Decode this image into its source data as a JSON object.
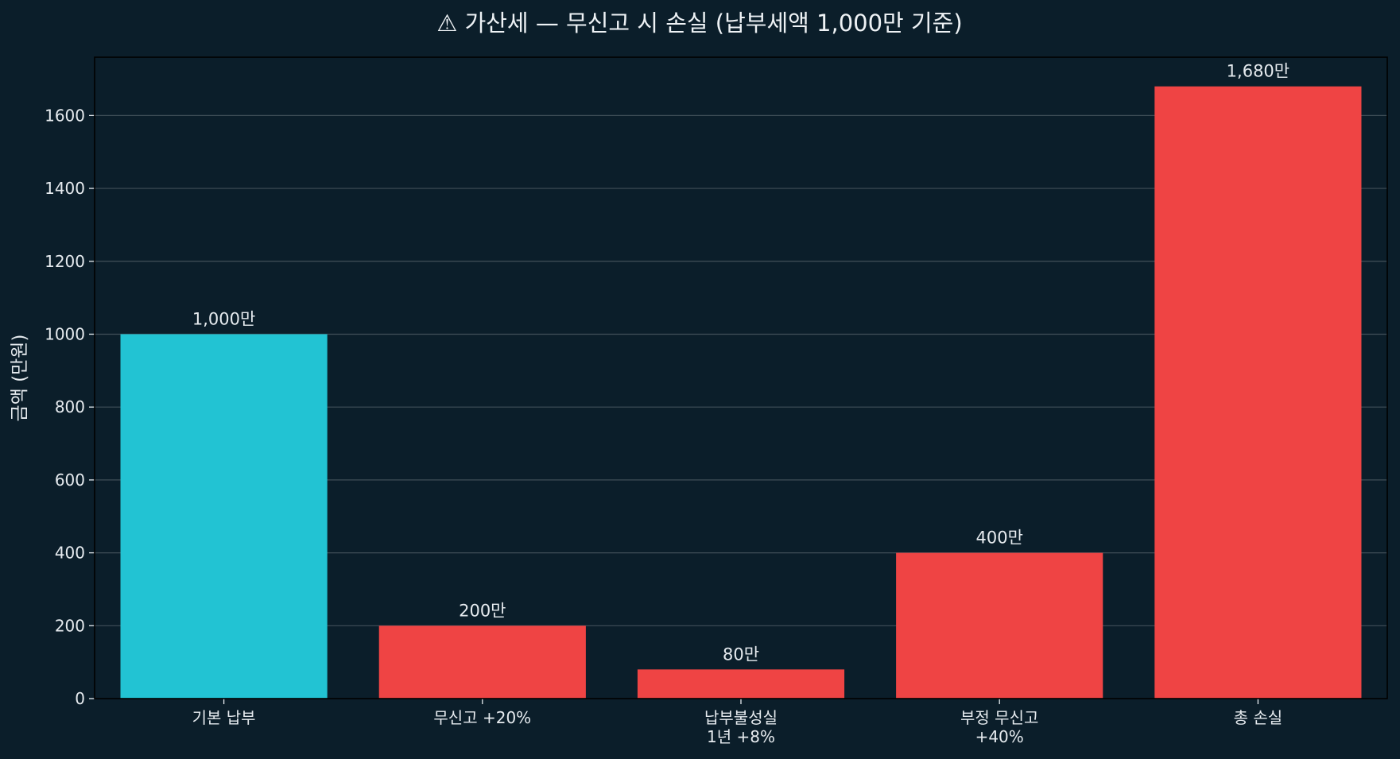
{
  "chart_data": {
    "type": "bar",
    "title": "⚠ 가산세 — 무신고 시 손실 (납부세액 1,000만 기준)",
    "xlabel": "",
    "ylabel": "금액 (만원)",
    "categories": [
      "기본 납부",
      "무신고 +20%",
      "납부불성실\n1년 +8%",
      "부정 무신고\n+40%",
      "총 손실"
    ],
    "values": [
      1000,
      200,
      80,
      400,
      1680
    ],
    "data_labels": [
      "1,000만",
      "200만",
      "80만",
      "400만",
      "1,680만"
    ],
    "bar_colors": [
      "#22c3d3",
      "#ef4444",
      "#ef4444",
      "#ef4444",
      "#ef4444"
    ],
    "ylim": [
      0,
      1760
    ],
    "yticks": [
      0,
      200,
      400,
      600,
      800,
      1000,
      1200,
      1400,
      1600
    ],
    "grid": "horizontal",
    "background": "#0b1e2a"
  }
}
